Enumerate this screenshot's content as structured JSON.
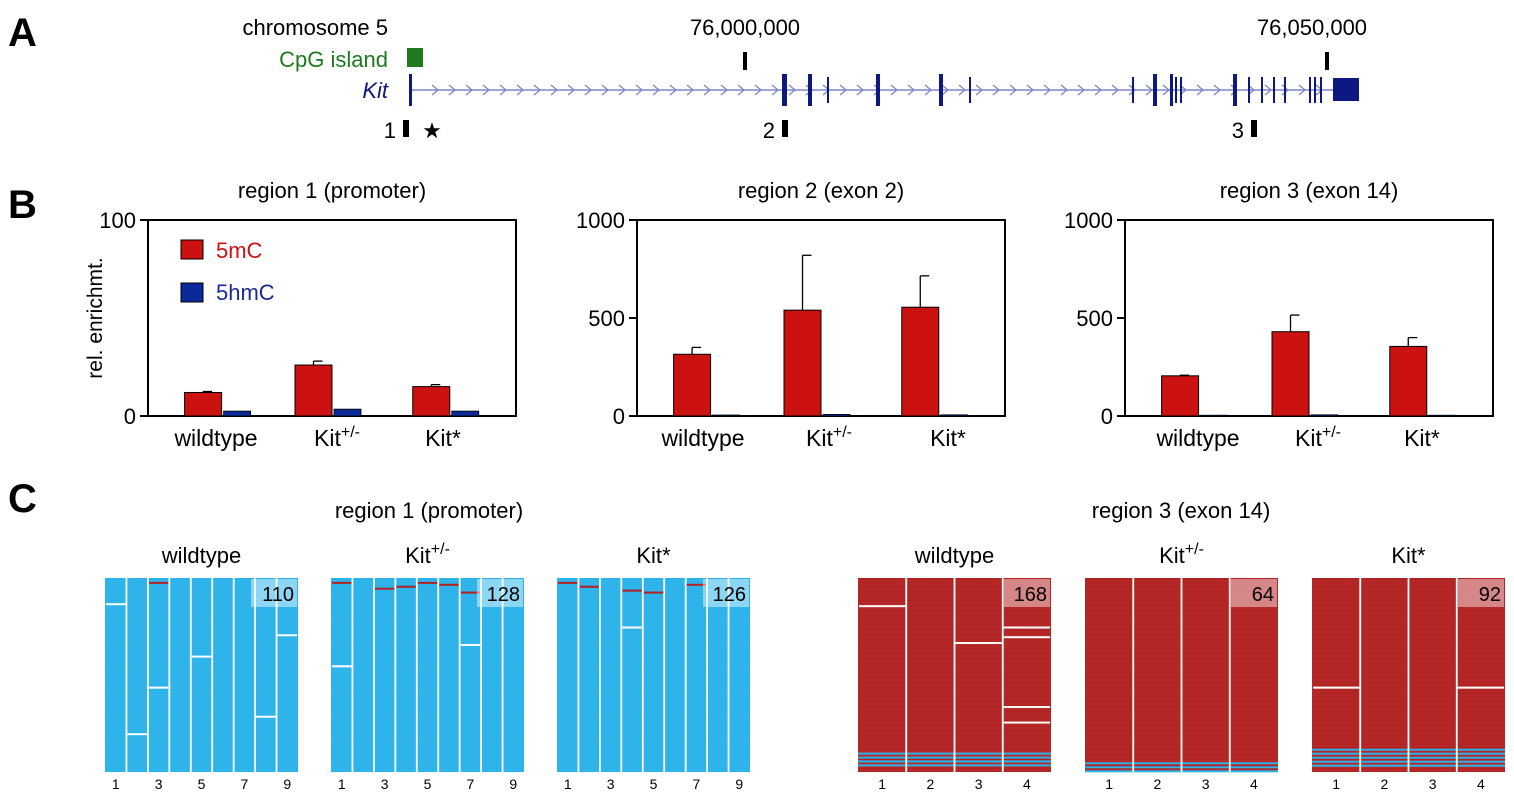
{
  "panel_labels": {
    "a": "A",
    "b": "B",
    "c": "C"
  },
  "panel_a": {
    "chrom_label": "chromosome 5",
    "cpg_label": "CpG island",
    "gene_label": "Kit",
    "coord1": "76,000,000",
    "coord2": "76,050,000",
    "region_markers": [
      "1",
      "2",
      "3"
    ],
    "star": "★",
    "colors": {
      "cpg": "#1e7a1e",
      "gene": "#0d1880",
      "intron": "#7f86c7"
    }
  },
  "panel_b": {
    "legend": {
      "mc": "5mC",
      "hmc": "5hmC"
    },
    "colors": {
      "mc": "#cc1111",
      "hmc": "#0a2a9a",
      "mc_text": "#cc1111",
      "hmc_text": "#1a2a9a"
    },
    "ylabel": "rel. enrichmt.",
    "genotypes": [
      {
        "base": "wildtype",
        "sup": ""
      },
      {
        "base": "Kit",
        "sup": "+/-"
      },
      {
        "base": "Kit*",
        "sup": ""
      }
    ]
  },
  "chart_data": [
    {
      "type": "bar",
      "title": "region 1 (promoter)",
      "categories": [
        "wildtype",
        "Kit+/-",
        "Kit*"
      ],
      "ylim": [
        0,
        100
      ],
      "yticks": [
        "0",
        "100"
      ],
      "ylabel": "rel. enrichmt.",
      "series": [
        {
          "name": "5mC",
          "values": [
            12,
            26,
            15
          ],
          "errors": [
            0.5,
            2,
            1
          ]
        },
        {
          "name": "5hmC",
          "values": [
            2.5,
            3.5,
            2.5
          ],
          "errors": [
            0.3,
            0.4,
            0.3
          ]
        }
      ]
    },
    {
      "type": "bar",
      "title": "region 2 (exon 2)",
      "categories": [
        "wildtype",
        "Kit+/-",
        "Kit*"
      ],
      "ylim": [
        0,
        1000
      ],
      "yticks": [
        "0",
        "500",
        "1000"
      ],
      "series": [
        {
          "name": "5mC",
          "values": [
            315,
            540,
            555
          ],
          "errors": [
            35,
            280,
            160
          ]
        },
        {
          "name": "5hmC",
          "values": [
            5,
            8,
            6
          ],
          "errors": [
            1,
            2,
            1
          ]
        }
      ]
    },
    {
      "type": "bar",
      "title": "region 3 (exon 14)",
      "categories": [
        "wildtype",
        "Kit+/-",
        "Kit*"
      ],
      "ylim": [
        0,
        1000
      ],
      "yticks": [
        "0",
        "500",
        "1000"
      ],
      "series": [
        {
          "name": "5mC",
          "values": [
            205,
            430,
            355
          ],
          "errors": [
            3,
            85,
            45
          ]
        },
        {
          "name": "5hmC",
          "values": [
            4,
            6,
            4
          ],
          "errors": [
            1,
            1,
            1
          ]
        }
      ]
    }
  ],
  "panel_c": {
    "region1_title": "region 1 (promoter)",
    "region3_title": "region 3 (exon 14)",
    "colors": {
      "unmethylated": "#2ab2ea",
      "methylated": "#b22222",
      "grid": "#ffffff"
    },
    "maps": [
      {
        "geno": "wildtype",
        "sup": "",
        "count": "110",
        "base_state": "unmethylated",
        "cols": 9,
        "col_labels": [
          "1",
          "3",
          "5",
          "7",
          "9"
        ]
      },
      {
        "geno": "Kit",
        "sup": "+/-",
        "count": "128",
        "base_state": "unmethylated",
        "cols": 9,
        "col_labels": [
          "1",
          "3",
          "5",
          "7",
          "9"
        ]
      },
      {
        "geno": "Kit*",
        "sup": "",
        "count": "126",
        "base_state": "unmethylated",
        "cols": 9,
        "col_labels": [
          "1",
          "3",
          "5",
          "7",
          "9"
        ]
      },
      {
        "geno": "wildtype",
        "sup": "",
        "count": "168",
        "base_state": "methylated",
        "cols": 4,
        "col_labels": [
          "1",
          "2",
          "3",
          "4"
        ]
      },
      {
        "geno": "Kit",
        "sup": "+/-",
        "count": "64",
        "base_state": "methylated",
        "cols": 4,
        "col_labels": [
          "1",
          "2",
          "3",
          "4"
        ]
      },
      {
        "geno": "Kit*",
        "sup": "",
        "count": "92",
        "base_state": "methylated",
        "cols": 4,
        "col_labels": [
          "1",
          "2",
          "3",
          "4"
        ]
      }
    ]
  }
}
